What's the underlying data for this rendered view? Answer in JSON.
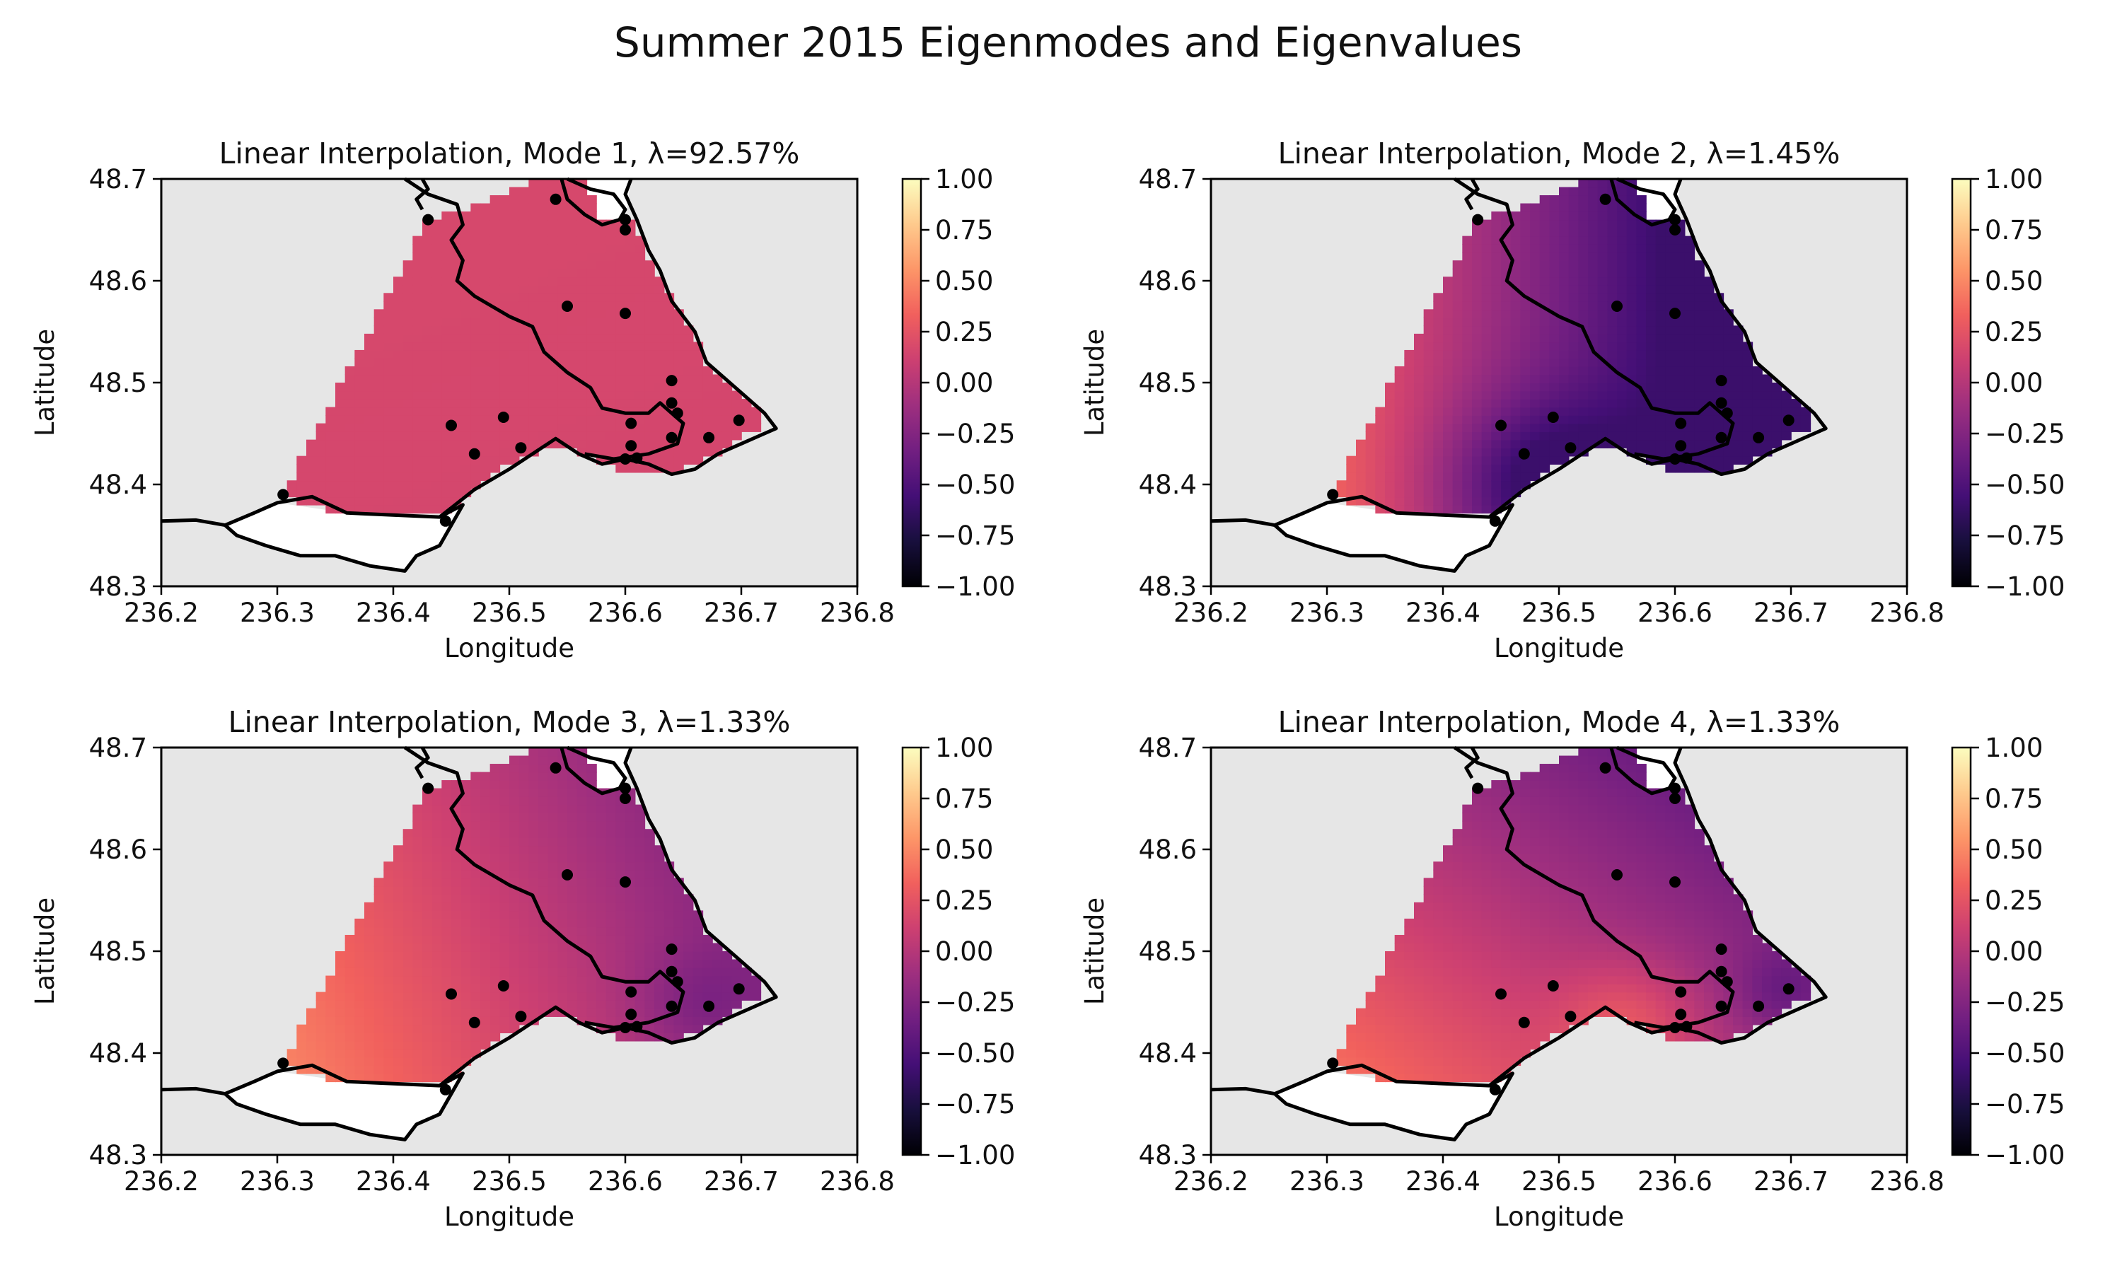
{
  "figure": {
    "suptitle": "Summer 2015 Eigenmodes and Eigenvalues"
  },
  "chart_data": [
    {
      "type": "heatmap",
      "title": "Linear Interpolation, Mode 1, λ=92.57%",
      "mode": 1,
      "eigenvalue_percent": 92.57,
      "xlabel": "Longitude",
      "ylabel": "Latitude",
      "xlim": [
        236.2,
        236.8
      ],
      "ylim": [
        48.3,
        48.7
      ],
      "xticks": [
        "236.2",
        "236.3",
        "236.4",
        "236.5",
        "236.6",
        "236.7",
        "236.8"
      ],
      "yticks": [
        "48.3",
        "48.4",
        "48.5",
        "48.6",
        "48.7"
      ],
      "colorbar": {
        "min": -1.0,
        "max": 1.0,
        "ticks": [
          "1.00",
          "0.75",
          "0.50",
          "0.25",
          "0.00",
          "−0.25",
          "−0.50",
          "−0.75",
          "−1.00"
        ],
        "colormap": "magma"
      },
      "field_summary": "nearly uniform positive field, value ≈ 0.15–0.2 everywhere"
    },
    {
      "type": "heatmap",
      "title": "Linear Interpolation, Mode 2, λ=1.45%",
      "mode": 2,
      "eigenvalue_percent": 1.45,
      "xlabel": "Longitude",
      "ylabel": "Latitude",
      "xlim": [
        236.2,
        236.8
      ],
      "ylim": [
        48.3,
        48.7
      ],
      "xticks": [
        "236.2",
        "236.3",
        "236.4",
        "236.5",
        "236.6",
        "236.7",
        "236.8"
      ],
      "yticks": [
        "48.3",
        "48.4",
        "48.5",
        "48.6",
        "48.7"
      ],
      "colorbar": {
        "min": -1.0,
        "max": 1.0,
        "ticks": [
          "1.00",
          "0.75",
          "0.50",
          "0.25",
          "0.00",
          "−0.25",
          "−0.50",
          "−0.75",
          "−1.00"
        ],
        "colormap": "magma"
      },
      "field_summary": "positive (~0.4) in the southwest, negative (~-0.5) near 236.48E 48.40N"
    },
    {
      "type": "heatmap",
      "title": "Linear Interpolation, Mode 3, λ=1.33%",
      "mode": 3,
      "eigenvalue_percent": 1.33,
      "xlabel": "Longitude",
      "ylabel": "Latitude",
      "xlim": [
        236.2,
        236.8
      ],
      "ylim": [
        48.3,
        48.7
      ],
      "xticks": [
        "236.2",
        "236.3",
        "236.4",
        "236.5",
        "236.6",
        "236.7",
        "236.8"
      ],
      "yticks": [
        "48.3",
        "48.4",
        "48.5",
        "48.6",
        "48.7"
      ],
      "colorbar": {
        "min": -1.0,
        "max": 1.0,
        "ticks": [
          "1.00",
          "0.75",
          "0.50",
          "0.25",
          "0.00",
          "−0.25",
          "−0.50",
          "−0.75",
          "−1.00"
        ],
        "colormap": "magma"
      },
      "field_summary": "positive (~0.45) in the southwest, negative (~-0.4) in the east"
    },
    {
      "type": "heatmap",
      "title": "Linear Interpolation, Mode 4, λ=1.33%",
      "mode": 4,
      "eigenvalue_percent": 1.33,
      "xlabel": "Longitude",
      "ylabel": "Latitude",
      "xlim": [
        236.2,
        236.8
      ],
      "ylim": [
        48.3,
        48.7
      ],
      "xticks": [
        "236.2",
        "236.3",
        "236.4",
        "236.5",
        "236.6",
        "236.7",
        "236.8"
      ],
      "yticks": [
        "48.3",
        "48.4",
        "48.5",
        "48.6",
        "48.7"
      ],
      "colorbar": {
        "min": -1.0,
        "max": 1.0,
        "ticks": [
          "1.00",
          "0.75",
          "0.50",
          "0.25",
          "0.00",
          "−0.25",
          "−0.50",
          "−0.75",
          "−1.00"
        ],
        "colormap": "magma"
      },
      "field_summary": "positive (~0.4) in the southwest, negative (~-0.35) in the north and near 236.69E 48.46N"
    }
  ],
  "stations": [
    [
      236.43,
      48.66
    ],
    [
      236.54,
      48.68
    ],
    [
      236.6,
      48.66
    ],
    [
      236.6,
      48.65
    ],
    [
      236.55,
      48.575
    ],
    [
      236.6,
      48.568
    ],
    [
      236.64,
      48.502
    ],
    [
      236.64,
      48.48
    ],
    [
      236.645,
      48.47
    ],
    [
      236.698,
      48.463
    ],
    [
      236.605,
      48.46
    ],
    [
      236.45,
      48.458
    ],
    [
      236.495,
      48.466
    ],
    [
      236.47,
      48.43
    ],
    [
      236.51,
      48.436
    ],
    [
      236.605,
      48.438
    ],
    [
      236.64,
      48.446
    ],
    [
      236.672,
      48.446
    ],
    [
      236.6,
      48.425
    ],
    [
      236.61,
      48.426
    ],
    [
      236.305,
      48.39
    ],
    [
      236.445,
      48.364
    ]
  ],
  "colormap_stops": [
    "#000004",
    "#180f3d",
    "#440f76",
    "#721f81",
    "#9e2f7f",
    "#cd4071",
    "#f1605d",
    "#fd9668",
    "#feca8d",
    "#fcfdbf"
  ]
}
